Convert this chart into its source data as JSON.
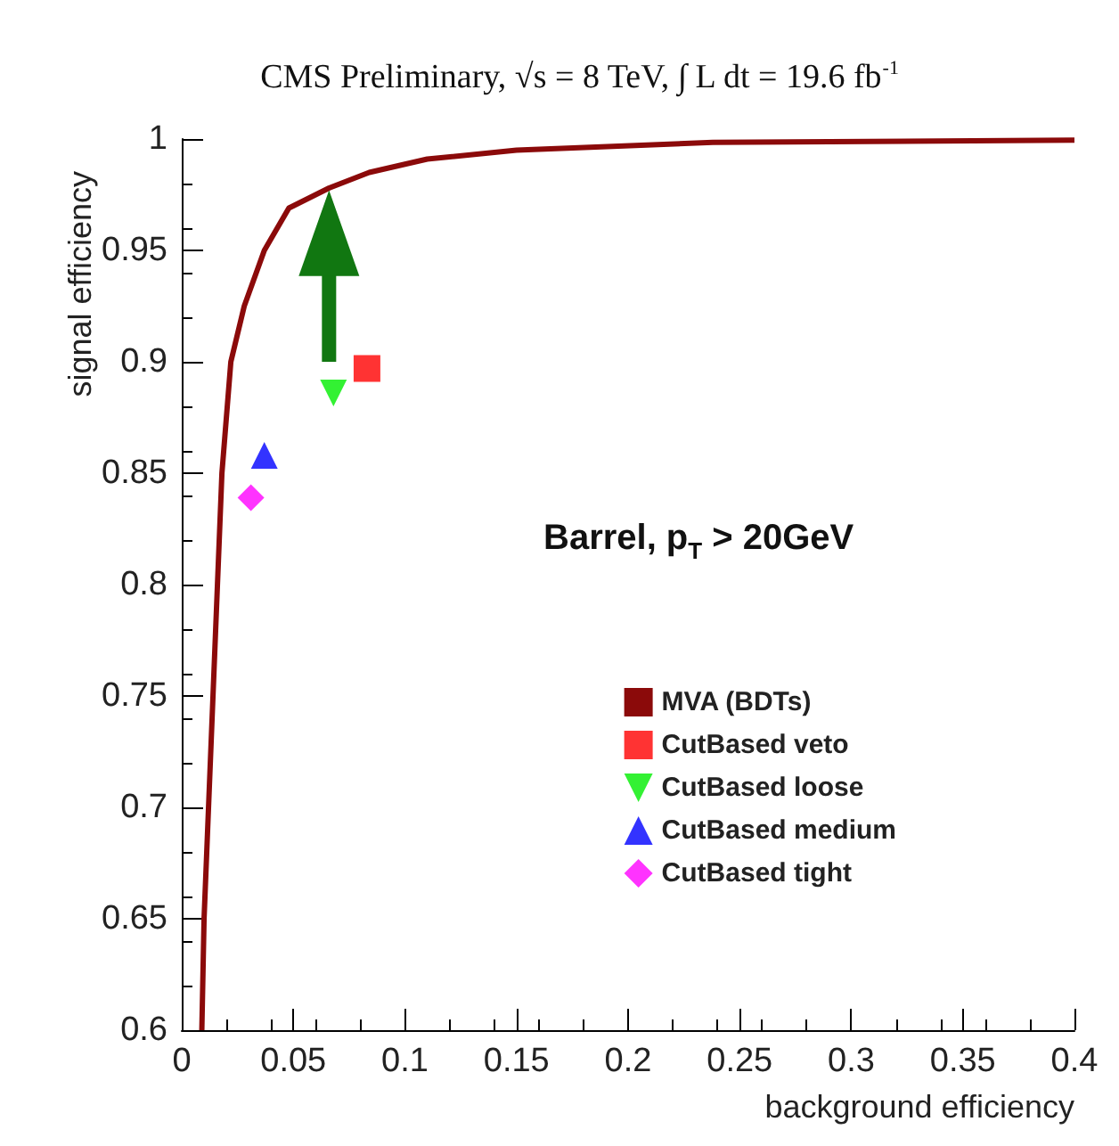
{
  "chart_data": {
    "type": "line",
    "title": "CMS Preliminary, √s = 8 TeV, ∫ L dt = 19.6 fb$^{-1}$",
    "xlabel": "background efficiency",
    "ylabel": "signal efficiency",
    "annotations": [
      "Barrel, p$_{T}$ > 20GeV"
    ],
    "xlim": [
      0,
      0.4
    ],
    "xticks": [
      0,
      0.05,
      0.1,
      0.15,
      0.2,
      0.25,
      0.3,
      0.35,
      0.4
    ],
    "ylim": [
      0.6,
      1
    ],
    "yticks": [
      0.6,
      0.65,
      0.7,
      0.75,
      0.8,
      0.85,
      0.9,
      0.95,
      1
    ],
    "grid": false,
    "legend": "bottom right",
    "series": [
      {
        "name": "MVA (BDTs)",
        "color": "#8b0a0a",
        "marker": "none",
        "x": [
          0.009,
          0.01,
          0.012,
          0.014,
          0.016,
          0.018,
          0.022,
          0.028,
          0.037,
          0.048,
          0.066,
          0.084,
          0.11,
          0.15,
          0.238,
          0.4
        ],
        "values": [
          0.6,
          0.65,
          0.7,
          0.75,
          0.8,
          0.85,
          0.9,
          0.925,
          0.95,
          0.969,
          0.978,
          0.985,
          0.991,
          0.995,
          0.9985,
          0.9995
        ]
      },
      {
        "name": "CutBased veto",
        "type": "scatter",
        "color": "#ff0000",
        "marker": "square",
        "x": [
          0.083
        ],
        "values": [
          0.897
        ]
      },
      {
        "name": "CutBased loose",
        "type": "scatter",
        "color": "#00ee00",
        "marker": "triangle-down",
        "x": [
          0.068
        ],
        "values": [
          0.886
        ]
      },
      {
        "name": "CutBased medium",
        "type": "scatter",
        "color": "#0000ff",
        "marker": "triangle",
        "x": [
          0.037
        ],
        "values": [
          0.858
        ]
      },
      {
        "name": "CutBased tight",
        "type": "scatter",
        "color": "#ff00ff",
        "marker": "diamond",
        "x": [
          0.031
        ],
        "values": [
          0.839
        ]
      }
    ]
  }
}
